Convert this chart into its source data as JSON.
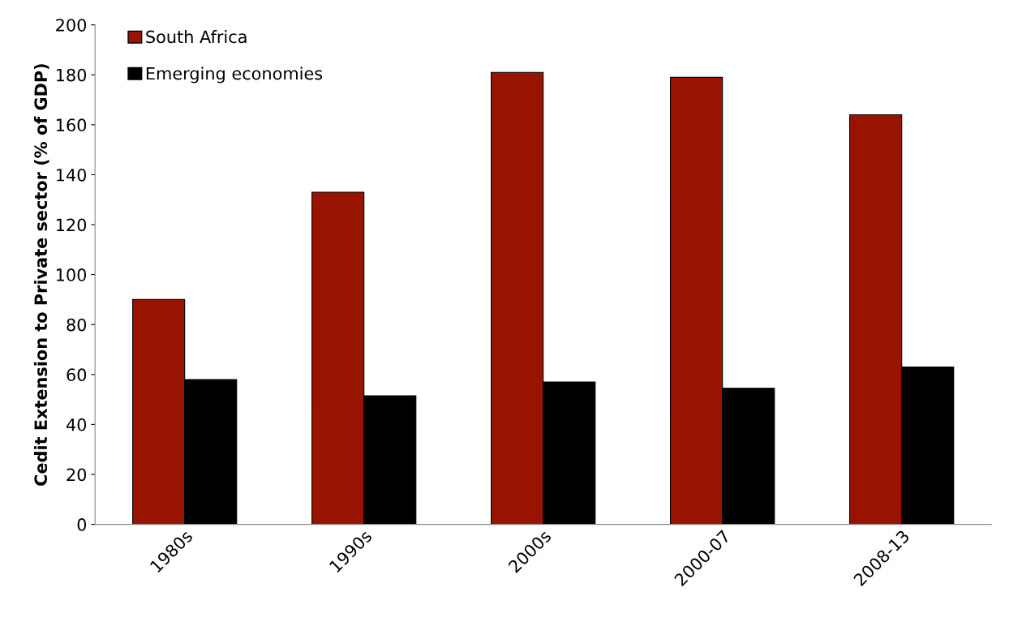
{
  "chart_data": {
    "type": "bar",
    "ylabel": "Cedit Extension to Private sector (% of GDP)",
    "categories": [
      "1980s",
      "1990s",
      "2000s",
      "2000-07",
      "2008-13"
    ],
    "series": [
      {
        "name": "South Africa",
        "color": "#991400",
        "values": [
          90,
          133,
          181,
          179,
          164
        ]
      },
      {
        "name": "Emerging economies",
        "color": "#000000",
        "values": [
          58,
          51.5,
          57,
          54.5,
          63
        ]
      }
    ],
    "ylim": [
      0,
      200
    ],
    "yticks": [
      0,
      20,
      40,
      60,
      80,
      100,
      120,
      140,
      160,
      180,
      200
    ],
    "grid": false,
    "legend": "top left"
  }
}
